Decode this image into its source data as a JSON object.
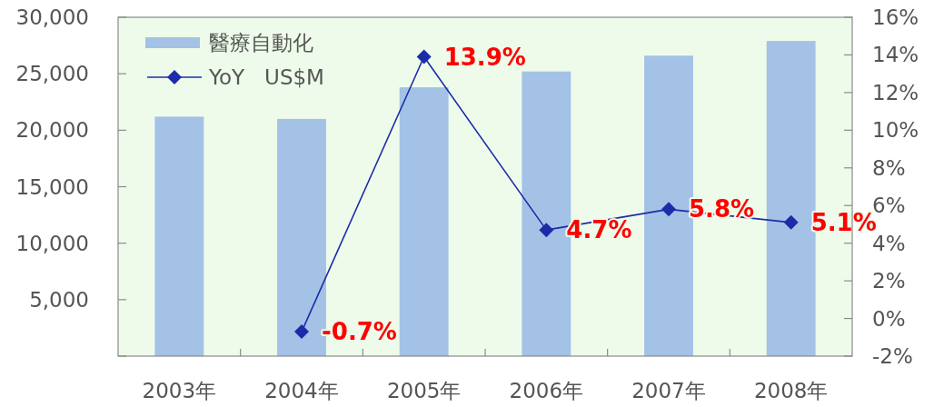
{
  "chart_data": {
    "type": "bar",
    "categories": [
      "2003年",
      "2004年",
      "2005年",
      "2006年",
      "2007年",
      "2008年"
    ],
    "series": [
      {
        "name": "醫療自動化",
        "color": "#a3c2e6",
        "values": [
          21200,
          21000,
          23800,
          25200,
          26600,
          27900
        ]
      },
      {
        "name": "YoY   US$M",
        "type": "line",
        "axis": "y2",
        "color": "#1c2ca8",
        "values": [
          null,
          -0.7,
          13.9,
          4.7,
          5.8,
          5.1
        ],
        "value_labels": [
          null,
          "-0.7%",
          "13.9%",
          "4.7%",
          "5.8%",
          "5.1%"
        ]
      }
    ],
    "ylim": [
      0,
      30000
    ],
    "yticks": [
      {
        "value": 0,
        "label": null
      },
      {
        "value": 5000,
        "label": "5,000"
      },
      {
        "value": 10000,
        "label": "10,000"
      },
      {
        "value": 15000,
        "label": "15,000"
      },
      {
        "value": 20000,
        "label": "20,000"
      },
      {
        "value": 25000,
        "label": "25,000"
      },
      {
        "value": 30000,
        "label": "30,000"
      }
    ],
    "y2lim": [
      -2,
      16
    ],
    "y2ticks": [
      {
        "value": -2,
        "label": "-2%"
      },
      {
        "value": 0,
        "label": "0%"
      },
      {
        "value": 2,
        "label": "2%"
      },
      {
        "value": 4,
        "label": "4%"
      },
      {
        "value": 6,
        "label": "6%"
      },
      {
        "value": 8,
        "label": "8%"
      },
      {
        "value": 10,
        "label": "10%"
      },
      {
        "value": 12,
        "label": "12%"
      },
      {
        "value": 14,
        "label": "14%"
      },
      {
        "value": 16,
        "label": "16%"
      }
    ],
    "legend": "top left",
    "marker": "diamond",
    "grid": false
  }
}
